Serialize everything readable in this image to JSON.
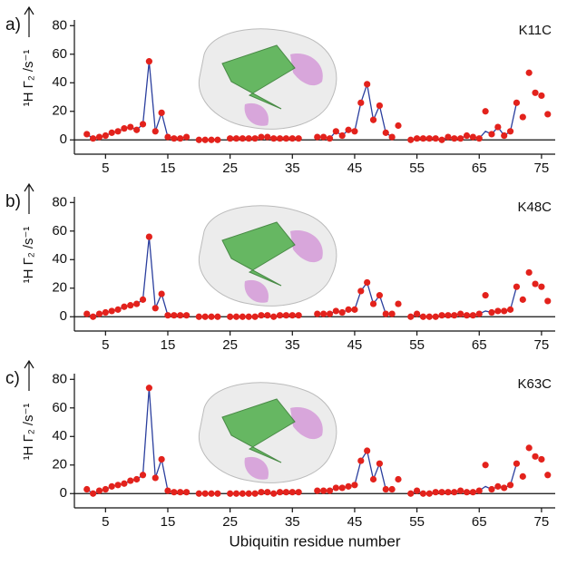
{
  "chart_data": [
    {
      "type": "line",
      "panel_label": "a)",
      "annotation": "K11C",
      "y_label": "¹H Γ₂ /s⁻¹",
      "x": [
        2,
        3,
        4,
        5,
        6,
        7,
        8,
        9,
        10,
        11,
        12,
        13,
        14,
        15,
        16,
        17,
        18,
        19,
        20,
        21,
        22,
        23,
        24,
        25,
        26,
        27,
        28,
        29,
        30,
        31,
        32,
        33,
        34,
        35,
        36,
        37,
        38,
        39,
        40,
        41,
        42,
        43,
        44,
        45,
        46,
        47,
        48,
        49,
        50,
        51,
        52,
        53,
        54,
        55,
        56,
        57,
        58,
        59,
        60,
        61,
        62,
        63,
        64,
        65,
        66,
        67,
        68,
        69,
        70,
        71,
        72,
        73,
        74,
        75,
        76
      ],
      "xlim": [
        0,
        77.2
      ],
      "ylim": [
        -10,
        84
      ],
      "xticks": [
        5,
        15,
        25,
        35,
        45,
        55,
        65,
        75
      ],
      "yticks": [
        0,
        20,
        40,
        60,
        80
      ],
      "series": [
        {
          "style": "line",
          "color": "#2b3f9e",
          "values": [
            4,
            1,
            2,
            3,
            5,
            6,
            8,
            9,
            7,
            11,
            55,
            6,
            19,
            2,
            1,
            1,
            2,
            null,
            0,
            0,
            0,
            0,
            null,
            1,
            1,
            1,
            1,
            1,
            2,
            2,
            1,
            1,
            1,
            1,
            1,
            null,
            null,
            2,
            2,
            1,
            6,
            3,
            7,
            6,
            26,
            39,
            14,
            24,
            5,
            2,
            null,
            null,
            0,
            1,
            1,
            1,
            1,
            0,
            2,
            1,
            1,
            3,
            2,
            1,
            6,
            4,
            9,
            3,
            6,
            26,
            null,
            null,
            null,
            null,
            null
          ]
        },
        {
          "style": "markers",
          "color": "#e3221c",
          "values": [
            4,
            1,
            2,
            3,
            5,
            6,
            8,
            9,
            7,
            11,
            55,
            6,
            19,
            2,
            1,
            1,
            2,
            null,
            0,
            0,
            0,
            0,
            null,
            1,
            1,
            1,
            1,
            1,
            2,
            2,
            1,
            1,
            1,
            1,
            1,
            null,
            null,
            2,
            2,
            1,
            6,
            3,
            7,
            6,
            26,
            39,
            14,
            24,
            5,
            2,
            10,
            null,
            0,
            1,
            1,
            1,
            1,
            0,
            2,
            1,
            1,
            3,
            2,
            1,
            20,
            4,
            9,
            3,
            6,
            26,
            16,
            47,
            33,
            31,
            18
          ]
        }
      ]
    },
    {
      "type": "line",
      "panel_label": "b)",
      "annotation": "K48C",
      "y_label": "¹H Γ₂ /s⁻¹",
      "x": [
        2,
        3,
        4,
        5,
        6,
        7,
        8,
        9,
        10,
        11,
        12,
        13,
        14,
        15,
        16,
        17,
        18,
        19,
        20,
        21,
        22,
        23,
        24,
        25,
        26,
        27,
        28,
        29,
        30,
        31,
        32,
        33,
        34,
        35,
        36,
        37,
        38,
        39,
        40,
        41,
        42,
        43,
        44,
        45,
        46,
        47,
        48,
        49,
        50,
        51,
        52,
        53,
        54,
        55,
        56,
        57,
        58,
        59,
        60,
        61,
        62,
        63,
        64,
        65,
        66,
        67,
        68,
        69,
        70,
        71,
        72,
        73,
        74,
        75,
        76
      ],
      "xlim": [
        0,
        77.2
      ],
      "ylim": [
        -10,
        84
      ],
      "xticks": [
        5,
        15,
        25,
        35,
        45,
        55,
        65,
        75
      ],
      "yticks": [
        0,
        20,
        40,
        60,
        80
      ],
      "series": [
        {
          "style": "line",
          "color": "#2b3f9e",
          "values": [
            2,
            0,
            2,
            3,
            4,
            5,
            7,
            8,
            9,
            12,
            56,
            6,
            16,
            1,
            1,
            1,
            1,
            null,
            0,
            0,
            0,
            0,
            null,
            0,
            0,
            0,
            0,
            0,
            1,
            1,
            0,
            1,
            1,
            1,
            1,
            null,
            null,
            2,
            2,
            2,
            4,
            3,
            5,
            5,
            18,
            24,
            9,
            15,
            2,
            2,
            null,
            null,
            0,
            2,
            0,
            0,
            0,
            1,
            1,
            1,
            2,
            1,
            1,
            2,
            4,
            3,
            4,
            4,
            5,
            21,
            null,
            null,
            null,
            null,
            null
          ]
        },
        {
          "style": "markers",
          "color": "#e3221c",
          "values": [
            2,
            0,
            2,
            3,
            4,
            5,
            7,
            8,
            9,
            12,
            56,
            6,
            16,
            1,
            1,
            1,
            1,
            null,
            0,
            0,
            0,
            0,
            null,
            0,
            0,
            0,
            0,
            0,
            1,
            1,
            0,
            1,
            1,
            1,
            1,
            null,
            null,
            2,
            2,
            2,
            4,
            3,
            5,
            5,
            18,
            24,
            9,
            15,
            2,
            2,
            9,
            null,
            0,
            2,
            0,
            0,
            0,
            1,
            1,
            1,
            2,
            1,
            1,
            2,
            15,
            3,
            4,
            4,
            5,
            21,
            12,
            31,
            23,
            21,
            11
          ]
        }
      ]
    },
    {
      "type": "line",
      "panel_label": "c)",
      "annotation": "K63C",
      "y_label": "¹H Γ₂ /s⁻¹",
      "x_label": "Ubiquitin residue number",
      "x": [
        2,
        3,
        4,
        5,
        6,
        7,
        8,
        9,
        10,
        11,
        12,
        13,
        14,
        15,
        16,
        17,
        18,
        19,
        20,
        21,
        22,
        23,
        24,
        25,
        26,
        27,
        28,
        29,
        30,
        31,
        32,
        33,
        34,
        35,
        36,
        37,
        38,
        39,
        40,
        41,
        42,
        43,
        44,
        45,
        46,
        47,
        48,
        49,
        50,
        51,
        52,
        53,
        54,
        55,
        56,
        57,
        58,
        59,
        60,
        61,
        62,
        63,
        64,
        65,
        66,
        67,
        68,
        69,
        70,
        71,
        72,
        73,
        74,
        75,
        76
      ],
      "xlim": [
        0,
        77.2
      ],
      "ylim": [
        -10,
        84
      ],
      "xticks": [
        5,
        15,
        25,
        35,
        45,
        55,
        65,
        75
      ],
      "yticks": [
        0,
        20,
        40,
        60,
        80
      ],
      "series": [
        {
          "style": "line",
          "color": "#2b3f9e",
          "values": [
            3,
            0,
            2,
            3,
            5,
            6,
            7,
            9,
            10,
            13,
            74,
            11,
            24,
            2,
            1,
            1,
            1,
            null,
            0,
            0,
            0,
            0,
            null,
            0,
            0,
            0,
            0,
            0,
            1,
            1,
            0,
            1,
            1,
            1,
            1,
            null,
            null,
            2,
            2,
            2,
            4,
            4,
            5,
            6,
            23,
            30,
            10,
            21,
            3,
            3,
            null,
            null,
            0,
            2,
            0,
            0,
            1,
            1,
            1,
            1,
            2,
            1,
            1,
            2,
            5,
            3,
            5,
            4,
            6,
            21,
            null,
            null,
            null,
            null,
            null
          ]
        },
        {
          "style": "markers",
          "color": "#e3221c",
          "values": [
            3,
            0,
            2,
            3,
            5,
            6,
            7,
            9,
            10,
            13,
            74,
            11,
            24,
            2,
            1,
            1,
            1,
            null,
            0,
            0,
            0,
            0,
            null,
            0,
            0,
            0,
            0,
            0,
            1,
            1,
            0,
            1,
            1,
            1,
            1,
            null,
            null,
            2,
            2,
            2,
            4,
            4,
            5,
            6,
            23,
            30,
            10,
            21,
            3,
            3,
            10,
            null,
            0,
            2,
            0,
            0,
            1,
            1,
            1,
            1,
            2,
            1,
            1,
            2,
            20,
            3,
            5,
            4,
            6,
            21,
            12,
            32,
            26,
            24,
            13
          ]
        }
      ]
    }
  ]
}
